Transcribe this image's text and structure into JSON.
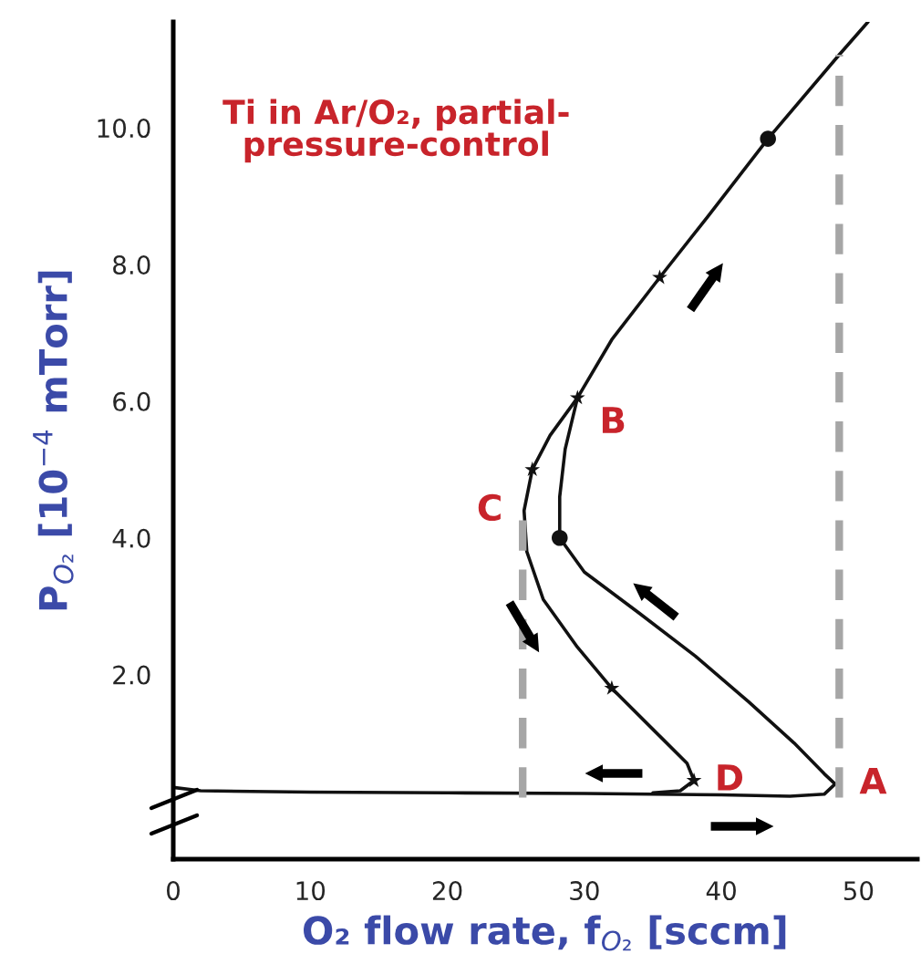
{
  "chart_data": {
    "type": "line",
    "title": "Ti in Ar/O₂, partial-\npressure-control",
    "xlabel": "O₂ flow rate, f$_{O₂}$ [sccm]",
    "ylabel": "P$_{O₂}$ [10$^{−4}$ mTorr]",
    "xlim": [
      0,
      54.3
    ],
    "ylim": [
      -0.7,
      11.55
    ],
    "xticks": [
      0,
      10,
      20,
      30,
      40,
      50
    ],
    "yticks": [
      {
        "value": 2,
        "label": "2.0"
      },
      {
        "value": 4,
        "label": "4.0"
      },
      {
        "value": 6,
        "label": "6.0"
      },
      {
        "value": 8,
        "label": "8.0"
      },
      {
        "value": 10,
        "label": "10.0"
      }
    ],
    "grid": false,
    "legend": false,
    "series": [
      {
        "color": "#111111",
        "line_style": "solid",
        "x": [
          0,
          2,
          10,
          20,
          30,
          40,
          45,
          47.5,
          48.3,
          47.5,
          45.3,
          42,
          38.1,
          34,
          30,
          28.2,
          28.2,
          28.6,
          29.5,
          32,
          35.5,
          39,
          43.4,
          48.6,
          50.7
        ],
        "values": [
          0.35,
          0.3,
          0.28,
          0.27,
          0.26,
          0.24,
          0.22,
          0.25,
          0.4,
          0.55,
          1.0,
          1.6,
          2.27,
          2.9,
          3.5,
          4.0,
          4.6,
          5.3,
          6.05,
          6.9,
          7.81,
          8.7,
          9.84,
          11.07,
          11.55
        ]
      },
      {
        "color": "#111111",
        "line_style": "solid",
        "x": [
          29.5,
          27.5,
          26.2,
          25.6,
          25.8,
          27,
          29.5,
          32,
          35,
          37.5,
          38,
          37,
          35
        ],
        "values": [
          6.05,
          5.5,
          5.0,
          4.4,
          3.8,
          3.1,
          2.4,
          1.8,
          1.2,
          0.7,
          0.45,
          0.3,
          0.27
        ]
      },
      {
        "type": "scatter",
        "color": "#111111",
        "marker": "star",
        "x": [
          35.5,
          29.5,
          26.2,
          32.0,
          38.0
        ],
        "values": [
          7.81,
          6.05,
          5.0,
          1.8,
          0.45
        ]
      },
      {
        "type": "scatter",
        "color": "#111111",
        "marker": "circle",
        "x": [
          28.2,
          43.4
        ],
        "values": [
          4.0,
          9.84
        ]
      },
      {
        "type": "line",
        "color": "#a6a6a6",
        "line_style": "dashed",
        "x": [
          25.5,
          25.5
        ],
        "values": [
          0.2,
          4.4
        ]
      },
      {
        "type": "line",
        "color": "#a6a6a6",
        "line_style": "dashed",
        "x": [
          48.6,
          48.6
        ],
        "values": [
          0.2,
          11.07
        ]
      }
    ],
    "annotations": [
      {
        "text": "A",
        "x": 48.3,
        "y": 0.4
      },
      {
        "text": "B",
        "x": 29.5,
        "y": 6.05
      },
      {
        "text": "C",
        "x": 25.5,
        "y": 4.4
      },
      {
        "text": "D",
        "x": 38.0,
        "y": 0.45
      }
    ]
  }
}
